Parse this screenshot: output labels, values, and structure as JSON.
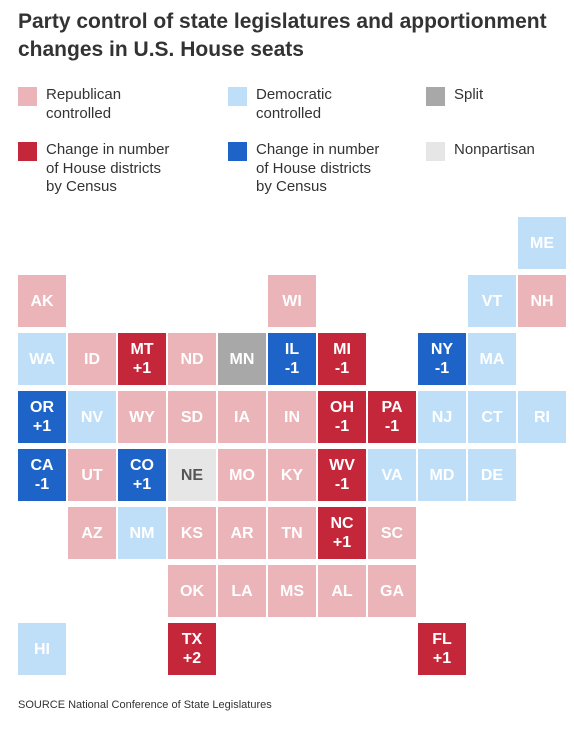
{
  "title": "Party control of state legislatures and apportionment changes in U.S. House seats",
  "legend": [
    {
      "key": "republican",
      "label": "Republican\ncontrolled",
      "color": "#eab4b8"
    },
    {
      "key": "democratic",
      "label": "Democratic\ncontrolled",
      "color": "#bfdff8"
    },
    {
      "key": "split",
      "label": "Split",
      "color": "#a8a8a8"
    },
    {
      "key": "rep_change",
      "label": "Change in number\nof House districts\nby Census",
      "color": "#c4263a"
    },
    {
      "key": "dem_change",
      "label": "Change in number\nof House districts\nby Census",
      "color": "#1e64c8"
    },
    {
      "key": "nonpartisan",
      "label": "Nonpartisan",
      "color": "#e6e6e6"
    }
  ],
  "colors": {
    "R": "#eab4b8",
    "D": "#bfdff8",
    "S": "#a8a8a8",
    "RC": "#c4263a",
    "DC": "#1e64c8",
    "N": "#e6e6e6"
  },
  "states": [
    {
      "abbr": "ME",
      "cat": "D",
      "change": ""
    },
    {
      "abbr": "AK",
      "cat": "R",
      "change": ""
    },
    {
      "abbr": "WI",
      "cat": "R",
      "change": ""
    },
    {
      "abbr": "VT",
      "cat": "D",
      "change": ""
    },
    {
      "abbr": "NH",
      "cat": "R",
      "change": ""
    },
    {
      "abbr": "WA",
      "cat": "D",
      "change": ""
    },
    {
      "abbr": "ID",
      "cat": "R",
      "change": ""
    },
    {
      "abbr": "MT",
      "cat": "RC",
      "change": "+1"
    },
    {
      "abbr": "ND",
      "cat": "R",
      "change": ""
    },
    {
      "abbr": "MN",
      "cat": "S",
      "change": ""
    },
    {
      "abbr": "IL",
      "cat": "DC",
      "change": "-1"
    },
    {
      "abbr": "MI",
      "cat": "RC",
      "change": "-1"
    },
    {
      "abbr": "NY",
      "cat": "DC",
      "change": "-1"
    },
    {
      "abbr": "MA",
      "cat": "D",
      "change": ""
    },
    {
      "abbr": "OR",
      "cat": "DC",
      "change": "+1"
    },
    {
      "abbr": "NV",
      "cat": "D",
      "change": ""
    },
    {
      "abbr": "WY",
      "cat": "R",
      "change": ""
    },
    {
      "abbr": "SD",
      "cat": "R",
      "change": ""
    },
    {
      "abbr": "IA",
      "cat": "R",
      "change": ""
    },
    {
      "abbr": "IN",
      "cat": "R",
      "change": ""
    },
    {
      "abbr": "OH",
      "cat": "RC",
      "change": "-1"
    },
    {
      "abbr": "PA",
      "cat": "RC",
      "change": "-1"
    },
    {
      "abbr": "NJ",
      "cat": "D",
      "change": ""
    },
    {
      "abbr": "CT",
      "cat": "D",
      "change": ""
    },
    {
      "abbr": "RI",
      "cat": "D",
      "change": ""
    },
    {
      "abbr": "CA",
      "cat": "DC",
      "change": "-1"
    },
    {
      "abbr": "UT",
      "cat": "R",
      "change": ""
    },
    {
      "abbr": "CO",
      "cat": "DC",
      "change": "+1"
    },
    {
      "abbr": "NE",
      "cat": "N",
      "change": ""
    },
    {
      "abbr": "MO",
      "cat": "R",
      "change": ""
    },
    {
      "abbr": "KY",
      "cat": "R",
      "change": ""
    },
    {
      "abbr": "WV",
      "cat": "RC",
      "change": "-1"
    },
    {
      "abbr": "VA",
      "cat": "D",
      "change": ""
    },
    {
      "abbr": "MD",
      "cat": "D",
      "change": ""
    },
    {
      "abbr": "DE",
      "cat": "D",
      "change": ""
    },
    {
      "abbr": "AZ",
      "cat": "R",
      "change": ""
    },
    {
      "abbr": "NM",
      "cat": "D",
      "change": ""
    },
    {
      "abbr": "KS",
      "cat": "R",
      "change": ""
    },
    {
      "abbr": "AR",
      "cat": "R",
      "change": ""
    },
    {
      "abbr": "TN",
      "cat": "R",
      "change": ""
    },
    {
      "abbr": "NC",
      "cat": "RC",
      "change": "+1"
    },
    {
      "abbr": "SC",
      "cat": "R",
      "change": ""
    },
    {
      "abbr": "OK",
      "cat": "R",
      "change": ""
    },
    {
      "abbr": "LA",
      "cat": "R",
      "change": ""
    },
    {
      "abbr": "MS",
      "cat": "R",
      "change": ""
    },
    {
      "abbr": "AL",
      "cat": "R",
      "change": ""
    },
    {
      "abbr": "GA",
      "cat": "R",
      "change": ""
    },
    {
      "abbr": "HI",
      "cat": "D",
      "change": ""
    },
    {
      "abbr": "TX",
      "cat": "RC",
      "change": "+2"
    },
    {
      "abbr": "FL",
      "cat": "RC",
      "change": "+1"
    }
  ],
  "source": "SOURCE National Conference of State Legislatures"
}
